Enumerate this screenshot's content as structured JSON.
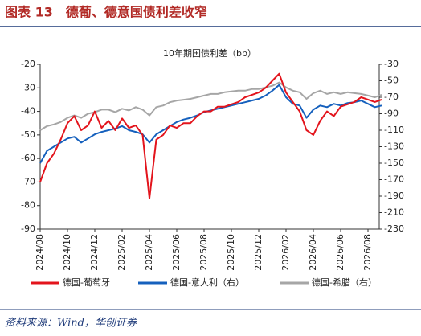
{
  "header": {
    "title": "图表 13　德葡、德意国债利差收窄"
  },
  "source": "资料来源：Wind，华创证券",
  "chart_data": {
    "type": "line",
    "title": "10年期国债利差（bp）",
    "categories": [
      "2024/08",
      null,
      null,
      null,
      "2024/10",
      null,
      null,
      null,
      "2024/12",
      null,
      null,
      null,
      "2025/02",
      null,
      null,
      null,
      "2025/04",
      null,
      null,
      null,
      "2025/06",
      null,
      null,
      null,
      "2025/08",
      null,
      null,
      null,
      "2025/10",
      null,
      null,
      null,
      "2025/12",
      null,
      null,
      null,
      "2026/02",
      null,
      null,
      null,
      "2026/04",
      null,
      null,
      null,
      "2026/06",
      null,
      null,
      null,
      "2026/08",
      null,
      null
    ],
    "series": [
      {
        "name": "德国-葡萄牙",
        "color": "#e3141c",
        "values": [
          -70,
          -62,
          -58,
          -52,
          -45,
          -42,
          -48,
          -46,
          -40,
          -47,
          -44,
          -48,
          -43,
          -47,
          -46,
          -50,
          -77,
          -52,
          -50,
          -46,
          -47,
          -45,
          -45,
          -42,
          -40,
          -40,
          -38,
          -38,
          -37,
          -36,
          -34,
          -33,
          -32,
          -30,
          -27,
          -24,
          -32,
          -36,
          -40,
          -48,
          -50,
          -44,
          -40,
          -42,
          -38,
          -37,
          -36,
          -34,
          -35,
          -36,
          -35
        ]
      },
      {
        "name": "德国-意大利（右）",
        "color": "#1560bd",
        "axis": "y2",
        "values": [
          -150,
          -135,
          -130,
          -125,
          -120,
          -118,
          -125,
          -120,
          -115,
          -112,
          -110,
          -108,
          -105,
          -110,
          -112,
          -115,
          -125,
          -115,
          -110,
          -105,
          -100,
          -97,
          -95,
          -92,
          -88,
          -86,
          -84,
          -82,
          -80,
          -78,
          -76,
          -74,
          -72,
          -68,
          -62,
          -55,
          -70,
          -78,
          -80,
          -95,
          -85,
          -80,
          -82,
          -78,
          -80,
          -77,
          -76,
          -74,
          -78,
          -82,
          -80
        ]
      },
      {
        "name": "德国-希腊（右）",
        "color": "#a6a6a6",
        "axis": "y2",
        "values": [
          -110,
          -105,
          -103,
          -100,
          -95,
          -92,
          -95,
          -90,
          -88,
          -85,
          -85,
          -88,
          -84,
          -86,
          -82,
          -85,
          -92,
          -82,
          -80,
          -76,
          -74,
          -73,
          -72,
          -70,
          -68,
          -66,
          -66,
          -64,
          -63,
          -62,
          -62,
          -60,
          -60,
          -58,
          -56,
          -52,
          -58,
          -62,
          -64,
          -72,
          -65,
          -62,
          -66,
          -64,
          -66,
          -64,
          -65,
          -66,
          -68,
          -70,
          -67
        ]
      }
    ],
    "ylim": [
      -90,
      -20
    ],
    "yticks": [
      -90,
      -80,
      -70,
      -60,
      -50,
      -40,
      -30,
      -20
    ],
    "y2lim": [
      -230,
      -30
    ],
    "y2ticks": [
      -230,
      -210,
      -190,
      -170,
      -150,
      -130,
      -110,
      -90,
      -70,
      -50,
      -30
    ],
    "legend": "bottom"
  }
}
